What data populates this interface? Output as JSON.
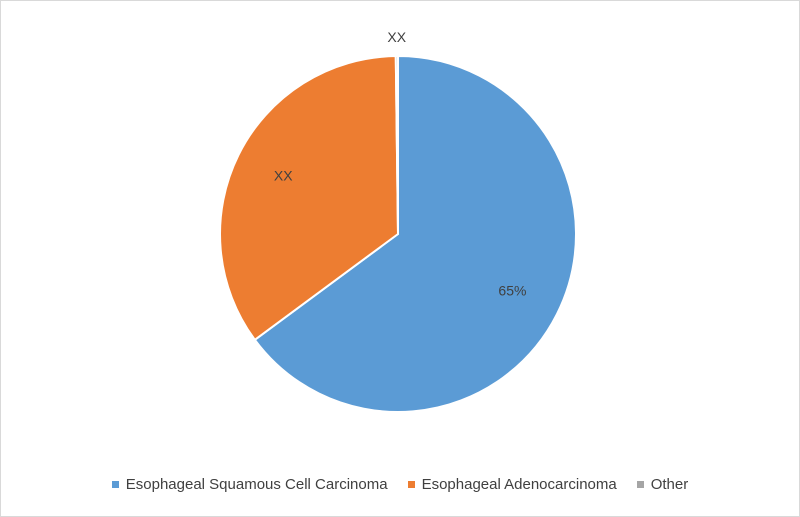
{
  "chart_data": {
    "type": "pie",
    "categories": [
      "Esophageal Squamous Cell Carcinoma",
      "Esophageal Adenocarcinoma",
      "Other"
    ],
    "values": [
      65,
      35,
      0.2
    ],
    "data_labels": [
      "65%",
      "XX",
      "XX"
    ],
    "colors": [
      "#5b9bd5",
      "#ed7d31",
      "#a5a5a5"
    ],
    "legend_position": "bottom",
    "start": "top",
    "direction": "clockwise"
  }
}
